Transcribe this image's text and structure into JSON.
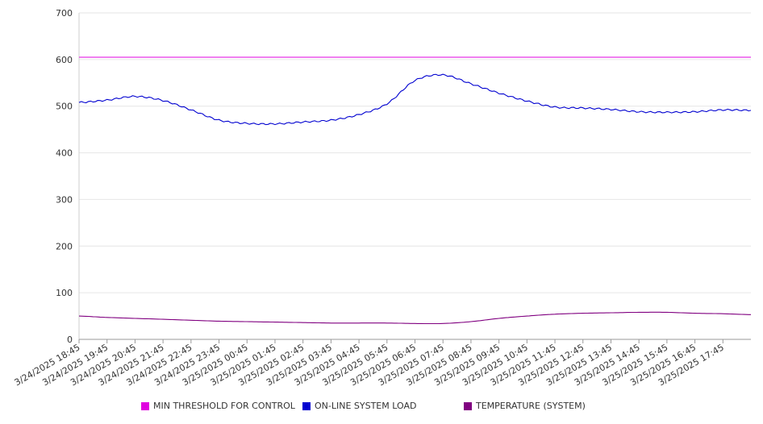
{
  "chart_data": {
    "type": "line",
    "title": "",
    "xlabel": "",
    "ylabel": "",
    "ylim": [
      0,
      700
    ],
    "yticks": [
      0,
      100,
      200,
      300,
      400,
      500,
      600,
      700
    ],
    "grid": "horizontal",
    "legend_position": "bottom",
    "xtick_labels": [
      "3/24/2025 18:45",
      "3/24/2025 19:45",
      "3/24/2025 20:45",
      "3/24/2025 21:45",
      "3/24/2025 22:45",
      "3/24/2025 23:45",
      "3/25/2025 00:45",
      "3/25/2025 01:45",
      "3/25/2025 02:45",
      "3/25/2025 03:45",
      "3/25/2025 04:45",
      "3/25/2025 05:45",
      "3/25/2025 06:45",
      "3/25/2025 07:45",
      "3/25/2025 08:45",
      "3/25/2025 09:45",
      "3/25/2025 10:45",
      "3/25/2025 11:45",
      "3/25/2025 12:45",
      "3/25/2025 13:45",
      "3/25/2025 14:45",
      "3/25/2025 15:45",
      "3/25/2025 16:45",
      "3/25/2025 17:45"
    ],
    "x": [
      "3/24/2025 18:45",
      "3/24/2025 19:45",
      "3/24/2025 20:45",
      "3/24/2025 21:45",
      "3/24/2025 22:45",
      "3/24/2025 23:45",
      "3/25/2025 00:45",
      "3/25/2025 01:45",
      "3/25/2025 02:45",
      "3/25/2025 03:45",
      "3/25/2025 04:45",
      "3/25/2025 05:45",
      "3/25/2025 06:45",
      "3/25/2025 07:45",
      "3/25/2025 08:45",
      "3/25/2025 09:45",
      "3/25/2025 10:45",
      "3/25/2025 11:45",
      "3/25/2025 12:45",
      "3/25/2025 13:45",
      "3/25/2025 14:45",
      "3/25/2025 15:45",
      "3/25/2025 16:45",
      "3/25/2025 17:45",
      "3/25/2025 18:45"
    ],
    "series": [
      {
        "name": "MIN THRESHOLD FOR CONTROL",
        "color": "#E000E0",
        "values": [
          605,
          605,
          605,
          605,
          605,
          605,
          605,
          605,
          605,
          605,
          605,
          605,
          605,
          605,
          605,
          605,
          605,
          605,
          605,
          605,
          605,
          605,
          605,
          605,
          605
        ]
      },
      {
        "name": "ON-LINE SYSTEM LOAD",
        "color": "#0000D0",
        "values": [
          508,
          513,
          521,
          512,
          492,
          470,
          463,
          462,
          466,
          470,
          482,
          505,
          555,
          567,
          548,
          528,
          511,
          498,
          496,
          493,
          488,
          487,
          488,
          492,
          491
        ]
      },
      {
        "name": "TEMPERATURE (SYSTEM)",
        "color": "#800080",
        "values": [
          50,
          47,
          45,
          43,
          41,
          39,
          38,
          37,
          36,
          35,
          35,
          35,
          34,
          34,
          38,
          45,
          50,
          54,
          56,
          57,
          58,
          58,
          56,
          55,
          53
        ]
      }
    ]
  }
}
